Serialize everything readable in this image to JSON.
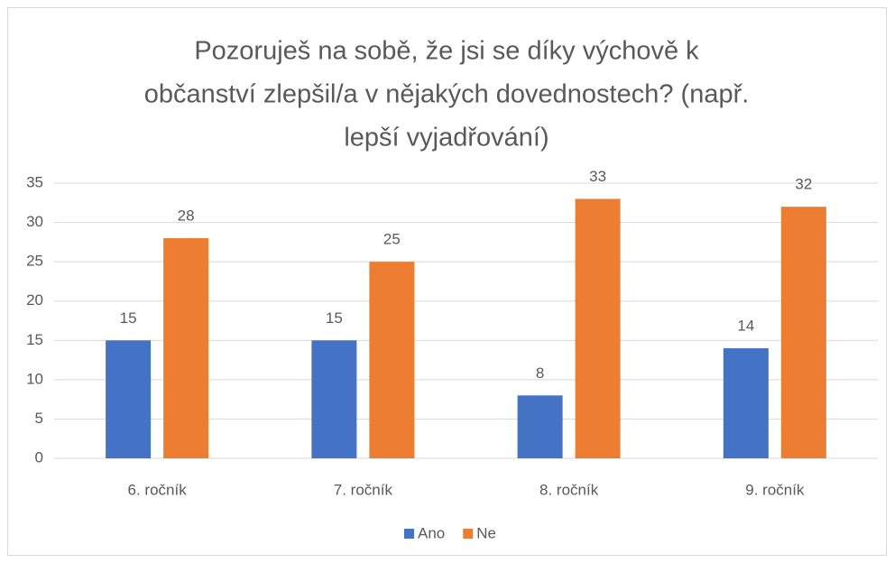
{
  "chart_data": {
    "type": "bar",
    "title": [
      "Pozoruješ na sobě, že jsi se díky výchově k",
      "občanství zlepšil/a v nějakých dovednostech? (např.",
      "lepší vyjadřování)"
    ],
    "categories": [
      "6. ročník",
      "7. ročník",
      "8. ročník",
      "9. ročník"
    ],
    "series": [
      {
        "name": "Ano",
        "color": "#4472c4",
        "values": [
          15,
          15,
          8,
          14
        ]
      },
      {
        "name": "Ne",
        "color": "#ed7d31",
        "values": [
          28,
          25,
          33,
          32
        ]
      }
    ],
    "ylim": [
      0,
      35
    ],
    "yticks": [
      0,
      5,
      10,
      15,
      20,
      25,
      30,
      35
    ],
    "grid": true,
    "legend": "bottom"
  }
}
